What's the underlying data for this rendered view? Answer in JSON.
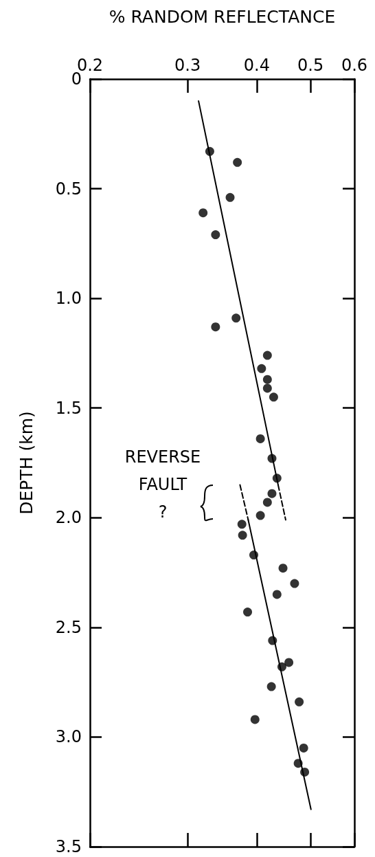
{
  "chart_data": {
    "type": "scatter",
    "xlabel": "% RANDOM REFLECTANCE",
    "ylabel": "DEPTH (km)",
    "log": "x",
    "xlim": [
      0.2,
      0.6
    ],
    "xticks": [
      0.2,
      0.3,
      0.4,
      0.5,
      0.6
    ],
    "ylim": [
      3.5,
      0
    ],
    "yticks": [
      0,
      0.5,
      {
        "value": 1,
        "label": "1.0"
      },
      1.5,
      {
        "value": 2,
        "label": "2.0"
      },
      2.5,
      {
        "value": 3,
        "label": "3.0"
      },
      3.5
    ],
    "grid": false,
    "marker": "circle",
    "annotations": [
      "REVERSE FAULT ?"
    ],
    "series": [
      {
        "color": "#000000",
        "x": [
          0.329,
          0.369,
          0.358,
          0.32,
          0.337,
          0.367,
          0.337,
          0.418,
          0.408,
          0.418,
          0.418,
          0.429,
          0.406,
          0.426,
          0.435,
          0.426,
          0.418,
          0.406,
          0.376,
          0.377,
          0.395,
          0.446,
          0.468,
          0.435,
          0.385,
          0.427,
          0.444,
          0.457,
          0.425,
          0.477,
          0.397,
          0.486,
          0.475,
          0.488
        ],
        "values": [
          0.33,
          0.38,
          0.54,
          0.61,
          0.71,
          1.09,
          1.13,
          1.26,
          1.32,
          1.37,
          1.41,
          1.45,
          1.64,
          1.73,
          1.82,
          1.89,
          1.93,
          1.99,
          2.03,
          2.08,
          2.17,
          2.23,
          2.3,
          2.35,
          2.43,
          2.56,
          2.68,
          2.66,
          2.77,
          2.84,
          2.92,
          3.05,
          3.12,
          3.16
        ]
      },
      {
        "type": "line",
        "color": "#000000",
        "line_style": "solid",
        "marker": "none",
        "x": [
          0.314,
          0.437
        ],
        "values": [
          0.1,
          1.85
        ]
      },
      {
        "type": "line",
        "color": "#000000",
        "line_style": "dashed",
        "marker": "none",
        "x": [
          0.437,
          0.451
        ],
        "values": [
          1.85,
          2.01
        ]
      },
      {
        "type": "line",
        "color": "#000000",
        "line_style": "dashed",
        "marker": "none",
        "x": [
          0.373,
          0.386
        ],
        "values": [
          1.85,
          2.01
        ]
      },
      {
        "type": "line",
        "color": "#000000",
        "line_style": "solid",
        "marker": "none",
        "x": [
          0.386,
          0.501
        ],
        "values": [
          2.01,
          3.33
        ]
      }
    ]
  }
}
